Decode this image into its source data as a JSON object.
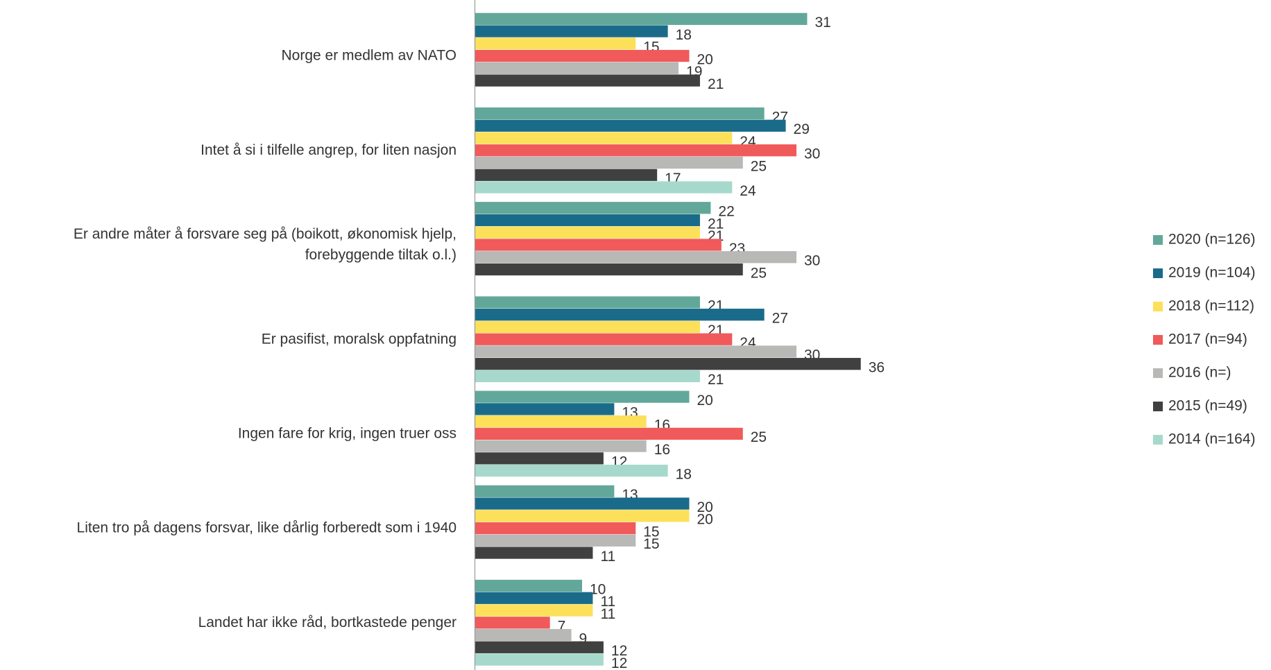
{
  "chart_data": {
    "type": "hbar",
    "categories": [
      "Norge er medlem av NATO",
      "Intet å si i tilfelle angrep, for liten nasjon",
      "Er andre måter å forsvare seg på (boikott, økonomisk hjelp,\nforebyggende tiltak o.l.)",
      "Er pasifist, moralsk oppfatning",
      "Ingen fare for krig, ingen truer oss",
      "Liten tro på dagens forsvar, like dårlig forberedt som i 1940",
      "Landet har ikke råd, bortkastede penger"
    ],
    "series": [
      {
        "name": "2020 (n=126)",
        "color": "#62a89a",
        "values": [
          31,
          27,
          22,
          21,
          20,
          13,
          10
        ]
      },
      {
        "name": "2019 (n=104)",
        "color": "#1a6b8a",
        "values": [
          18,
          29,
          21,
          27,
          13,
          20,
          11
        ]
      },
      {
        "name": "2018 (n=112)",
        "color": "#fde05a",
        "values": [
          15,
          24,
          21,
          21,
          16,
          20,
          11
        ]
      },
      {
        "name": "2017 (n=94)",
        "color": "#f05a5a",
        "values": [
          20,
          30,
          23,
          24,
          25,
          15,
          7
        ]
      },
      {
        "name": "2016 (n=)",
        "color": "#b8b8b6",
        "values": [
          19,
          25,
          30,
          30,
          16,
          15,
          9
        ]
      },
      {
        "name": "2015 (n=49)",
        "color": "#404040",
        "values": [
          21,
          17,
          25,
          36,
          12,
          11,
          12
        ]
      },
      {
        "name": "2014 (n=164)",
        "color": "#a6d9cc",
        "values": [
          null,
          24,
          null,
          21,
          18,
          null,
          12
        ]
      }
    ],
    "legend": "right"
  }
}
